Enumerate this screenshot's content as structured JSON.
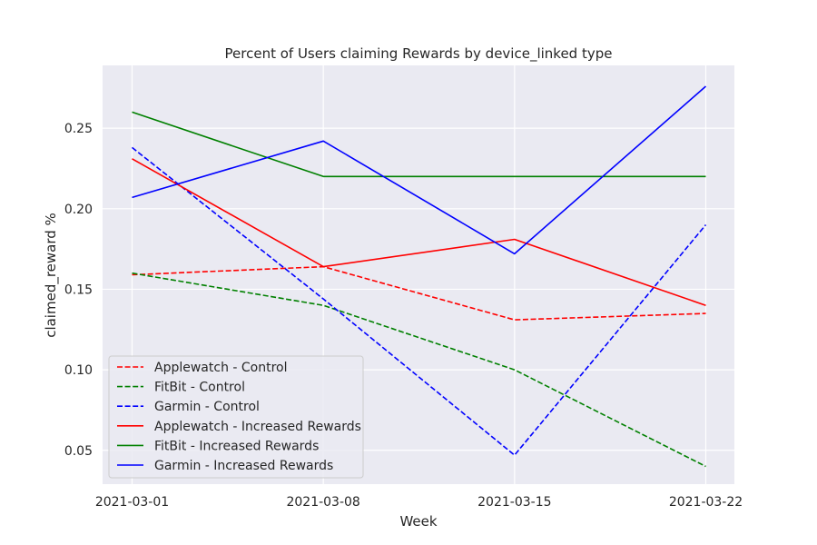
{
  "chart_data": {
    "type": "line",
    "title": "Percent of Users claiming Rewards by device_linked type",
    "xlabel": "Week",
    "ylabel": "claimed_reward %",
    "categories": [
      "2021-03-01",
      "2021-03-08",
      "2021-03-15",
      "2021-03-22"
    ],
    "yticks": [
      "0.05",
      "0.10",
      "0.15",
      "0.20",
      "0.25"
    ],
    "ylim": [
      0.029,
      0.289
    ],
    "grid": true,
    "legend_position": "lower-left",
    "series": [
      {
        "name": "Applewatch - Control",
        "color": "#ff0000",
        "style": "dashed",
        "values": [
          0.159,
          0.164,
          0.131,
          0.135
        ]
      },
      {
        "name": "FitBit - Control",
        "color": "#008000",
        "style": "dashed",
        "values": [
          0.16,
          0.14,
          0.1,
          0.04
        ]
      },
      {
        "name": "Garmin - Control",
        "color": "#0000ff",
        "style": "dashed",
        "values": [
          0.238,
          0.144,
          0.047,
          0.19
        ]
      },
      {
        "name": "Applewatch - Increased Rewards",
        "color": "#ff0000",
        "style": "solid",
        "values": [
          0.231,
          0.164,
          0.181,
          0.14
        ]
      },
      {
        "name": "FitBit - Increased Rewards",
        "color": "#008000",
        "style": "solid",
        "values": [
          0.26,
          0.22,
          0.22,
          0.22
        ]
      },
      {
        "name": "Garmin - Increased Rewards",
        "color": "#0000ff",
        "style": "solid",
        "values": [
          0.207,
          0.242,
          0.172,
          0.276
        ]
      }
    ]
  }
}
